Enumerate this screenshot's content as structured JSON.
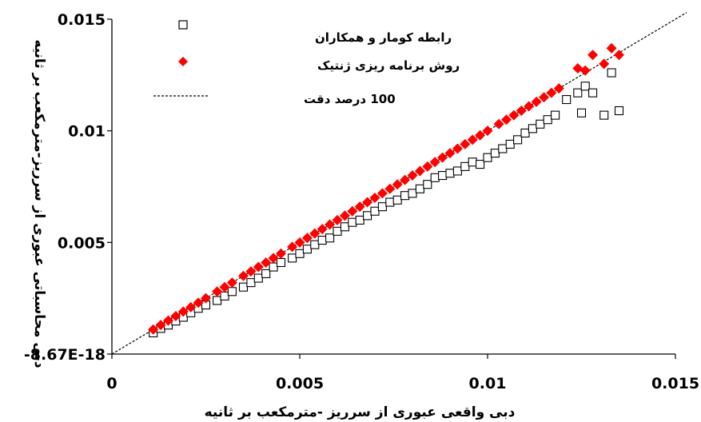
{
  "chart_data": {
    "type": "scatter",
    "xlabel": "دبی واقعی عبوری از سرریز -مترمکعب بر ثانیه",
    "ylabel": "دبی محاسباتی عبوری از سرریز-مترمکعب بر ثانیه",
    "xlim": [
      0,
      0.015
    ],
    "ylim": [
      0,
      0.015
    ],
    "x_ticks": [
      "0",
      "0.005",
      "0.01",
      "0.015"
    ],
    "y_ticks": [
      "-8.67E-18",
      "0.005",
      "0.01",
      "0.015"
    ],
    "grid": false,
    "legend_position": "top-left",
    "series": [
      {
        "name": "رابطه کومار و همکاران",
        "marker": "open-square",
        "color": "#000000",
        "points": [
          [
            0.0011,
            0.00095
          ],
          [
            0.0013,
            0.00115
          ],
          [
            0.0015,
            0.0013
          ],
          [
            0.0017,
            0.00148
          ],
          [
            0.0019,
            0.00165
          ],
          [
            0.0021,
            0.00185
          ],
          [
            0.0023,
            0.00205
          ],
          [
            0.0025,
            0.0022
          ],
          [
            0.0028,
            0.0024
          ],
          [
            0.003,
            0.0026
          ],
          [
            0.0032,
            0.0028
          ],
          [
            0.0035,
            0.003
          ],
          [
            0.0037,
            0.0032
          ],
          [
            0.0039,
            0.0034
          ],
          [
            0.0041,
            0.0036
          ],
          [
            0.0043,
            0.0039
          ],
          [
            0.0045,
            0.0041
          ],
          [
            0.0048,
            0.0043
          ],
          [
            0.005,
            0.0045
          ],
          [
            0.0052,
            0.0047
          ],
          [
            0.0054,
            0.0049
          ],
          [
            0.0056,
            0.0051
          ],
          [
            0.0058,
            0.0052
          ],
          [
            0.006,
            0.0055
          ],
          [
            0.0062,
            0.0057
          ],
          [
            0.0064,
            0.0059
          ],
          [
            0.0066,
            0.006
          ],
          [
            0.0068,
            0.0062
          ],
          [
            0.007,
            0.0064
          ],
          [
            0.0072,
            0.0066
          ],
          [
            0.0074,
            0.0068
          ],
          [
            0.0076,
            0.0069
          ],
          [
            0.0078,
            0.0071
          ],
          [
            0.008,
            0.0072
          ],
          [
            0.0082,
            0.0074
          ],
          [
            0.0084,
            0.0076
          ],
          [
            0.0086,
            0.0079
          ],
          [
            0.0088,
            0.008
          ],
          [
            0.009,
            0.0081
          ],
          [
            0.0092,
            0.0082
          ],
          [
            0.0094,
            0.0084
          ],
          [
            0.0096,
            0.0086
          ],
          [
            0.0098,
            0.0085
          ],
          [
            0.01,
            0.0088
          ],
          [
            0.0102,
            0.009
          ],
          [
            0.0104,
            0.0092
          ],
          [
            0.0106,
            0.0094
          ],
          [
            0.0108,
            0.0096
          ],
          [
            0.011,
            0.0099
          ],
          [
            0.0112,
            0.0101
          ],
          [
            0.0114,
            0.0103
          ],
          [
            0.0116,
            0.0105
          ],
          [
            0.0118,
            0.0107
          ],
          [
            0.0121,
            0.0114
          ],
          [
            0.0124,
            0.0117
          ],
          [
            0.0126,
            0.012
          ],
          [
            0.0128,
            0.0117
          ],
          [
            0.0125,
            0.0108
          ],
          [
            0.0131,
            0.0107
          ],
          [
            0.0135,
            0.0109
          ],
          [
            0.0133,
            0.0126
          ]
        ]
      },
      {
        "name": "روش برنامه ریزی ژنتیک",
        "marker": "filled-diamond",
        "color": "#ff0000",
        "points": [
          [
            0.0011,
            0.0011
          ],
          [
            0.0013,
            0.0013
          ],
          [
            0.0015,
            0.0015
          ],
          [
            0.0017,
            0.0017
          ],
          [
            0.0019,
            0.0019
          ],
          [
            0.0021,
            0.0021
          ],
          [
            0.0023,
            0.0023
          ],
          [
            0.0025,
            0.0025
          ],
          [
            0.0028,
            0.0028
          ],
          [
            0.003,
            0.003
          ],
          [
            0.0032,
            0.0032
          ],
          [
            0.0035,
            0.0035
          ],
          [
            0.0037,
            0.0037
          ],
          [
            0.0039,
            0.0039
          ],
          [
            0.0041,
            0.0041
          ],
          [
            0.0043,
            0.0043
          ],
          [
            0.0045,
            0.0045
          ],
          [
            0.0048,
            0.0048
          ],
          [
            0.005,
            0.005
          ],
          [
            0.0052,
            0.0052
          ],
          [
            0.0054,
            0.0054
          ],
          [
            0.0056,
            0.0056
          ],
          [
            0.0058,
            0.0058
          ],
          [
            0.006,
            0.006
          ],
          [
            0.0062,
            0.0062
          ],
          [
            0.0064,
            0.0064
          ],
          [
            0.0066,
            0.0066
          ],
          [
            0.0068,
            0.0068
          ],
          [
            0.007,
            0.007
          ],
          [
            0.0072,
            0.0072
          ],
          [
            0.0074,
            0.0074
          ],
          [
            0.0076,
            0.0076
          ],
          [
            0.0078,
            0.0078
          ],
          [
            0.008,
            0.008
          ],
          [
            0.0082,
            0.0082
          ],
          [
            0.0084,
            0.0084
          ],
          [
            0.0086,
            0.0086
          ],
          [
            0.0088,
            0.0088
          ],
          [
            0.009,
            0.009
          ],
          [
            0.0092,
            0.0092
          ],
          [
            0.0094,
            0.0094
          ],
          [
            0.0096,
            0.0096
          ],
          [
            0.0098,
            0.0098
          ],
          [
            0.01,
            0.01
          ],
          [
            0.0103,
            0.0103
          ],
          [
            0.0105,
            0.0105
          ],
          [
            0.0107,
            0.0107
          ],
          [
            0.0109,
            0.0109
          ],
          [
            0.0111,
            0.0111
          ],
          [
            0.0113,
            0.0113
          ],
          [
            0.0115,
            0.0115
          ],
          [
            0.0117,
            0.0117
          ],
          [
            0.0119,
            0.0119
          ],
          [
            0.0124,
            0.0128
          ],
          [
            0.0126,
            0.0127
          ],
          [
            0.0128,
            0.0134
          ],
          [
            0.0131,
            0.013
          ],
          [
            0.0133,
            0.0137
          ],
          [
            0.0135,
            0.0134
          ]
        ]
      },
      {
        "name": "100 درصد دقت",
        "marker": "dashed-line",
        "color": "#000000",
        "points": [
          [
            0,
            0
          ],
          [
            0.0153,
            0.0153
          ]
        ]
      }
    ]
  }
}
